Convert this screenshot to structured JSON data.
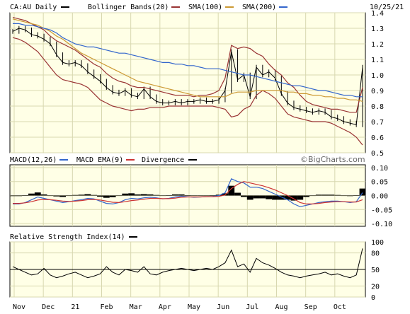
{
  "header": {
    "symbol_label": "CA:AU Daily",
    "bollinger_label": "Bollinger Bands(20)",
    "sma100_label": "SMA(100)",
    "sma200_label": "SMA(200)",
    "date_label": "10/25/21"
  },
  "macd_header": {
    "macd_label": "MACD(12,26)",
    "ema_label": "MACD EMA(9)",
    "divergence_label": "Divergence"
  },
  "rsi_header": {
    "rsi_label": "Relative Strength Index(14)"
  },
  "watermark": "©BigCharts.com",
  "colors": {
    "plot_bg": "#ffffe6",
    "grid": "#d8d8b0",
    "price": "#000000",
    "bollinger": "#993333",
    "sma100": "#cc9933",
    "sma200": "#3366cc",
    "macd": "#3366cc",
    "ema": "#cc3333",
    "divergence": "#000000",
    "rsi": "#000000"
  },
  "chart_data": [
    {
      "type": "line",
      "panel": "price",
      "x_ticks": [
        "Nov",
        "Dec",
        "21",
        "Feb",
        "Mar",
        "Apr",
        "May",
        "Jun",
        "Jul",
        "Aug",
        "Sep",
        "Oct"
      ],
      "y_ticks": [
        "1.4",
        "1.3",
        "1.2",
        "1.1",
        "1.0",
        "0.9",
        "0.8",
        "0.7",
        "0.6",
        "0.5"
      ],
      "ylim": [
        0.5,
        1.4
      ],
      "series": [
        {
          "name": "CA:AU Daily",
          "values": [
            1.28,
            1.3,
            1.29,
            1.26,
            1.25,
            1.23,
            1.2,
            1.13,
            1.08,
            1.07,
            1.08,
            1.06,
            1.02,
            0.99,
            0.96,
            0.92,
            0.89,
            0.88,
            0.9,
            0.87,
            0.86,
            0.91,
            0.86,
            0.83,
            0.82,
            0.82,
            0.83,
            0.82,
            0.83,
            0.83,
            0.84,
            0.83,
            0.83,
            0.84,
            0.9,
            1.15,
            0.97,
            1.0,
            0.86,
            1.05,
            1.0,
            1.02,
            0.98,
            0.88,
            0.82,
            0.79,
            0.78,
            0.77,
            0.76,
            0.77,
            0.76,
            0.73,
            0.72,
            0.7,
            0.69,
            0.68,
            1.05
          ]
        },
        {
          "name": "Bollinger Bands(20)",
          "values": [
            1.37,
            1.36,
            1.35,
            1.33,
            1.31,
            1.29,
            1.25,
            1.22,
            1.2,
            1.18,
            1.16,
            1.13,
            1.1,
            1.07,
            1.05,
            1.01,
            0.98,
            0.96,
            0.95,
            0.93,
            0.92,
            0.92,
            0.91,
            0.9,
            0.89,
            0.88,
            0.87,
            0.87,
            0.87,
            0.86,
            0.87,
            0.87,
            0.88,
            0.9,
            0.98,
            1.19,
            1.17,
            1.18,
            1.17,
            1.14,
            1.12,
            1.07,
            1.03,
            1.0,
            0.95,
            0.92,
            0.87,
            0.83,
            0.81,
            0.8,
            0.79,
            0.78,
            0.78,
            0.77,
            0.76,
            0.76,
            0.92
          ]
        },
        {
          "name": "Bollinger Bands(20) lower",
          "values": [
            1.24,
            1.23,
            1.21,
            1.18,
            1.15,
            1.1,
            1.05,
            1.0,
            0.97,
            0.96,
            0.95,
            0.94,
            0.92,
            0.88,
            0.84,
            0.82,
            0.8,
            0.79,
            0.78,
            0.77,
            0.78,
            0.78,
            0.79,
            0.79,
            0.79,
            0.8,
            0.8,
            0.8,
            0.8,
            0.8,
            0.8,
            0.8,
            0.8,
            0.79,
            0.78,
            0.73,
            0.74,
            0.78,
            0.8,
            0.87,
            0.9,
            0.88,
            0.85,
            0.8,
            0.75,
            0.73,
            0.72,
            0.71,
            0.7,
            0.7,
            0.7,
            0.69,
            0.67,
            0.65,
            0.63,
            0.6,
            0.55
          ]
        },
        {
          "name": "SMA(100)",
          "values": [
            1.36,
            1.35,
            1.34,
            1.33,
            1.32,
            1.3,
            1.28,
            1.25,
            1.23,
            1.2,
            1.17,
            1.14,
            1.12,
            1.1,
            1.08,
            1.06,
            1.04,
            1.02,
            1.0,
            0.98,
            0.96,
            0.95,
            0.94,
            0.93,
            0.92,
            0.91,
            0.9,
            0.89,
            0.88,
            0.87,
            0.86,
            0.86,
            0.86,
            0.86,
            0.86,
            0.88,
            0.89,
            0.89,
            0.89,
            0.9,
            0.9,
            0.9,
            0.9,
            0.9,
            0.89,
            0.89,
            0.88,
            0.88,
            0.87,
            0.87,
            0.86,
            0.86,
            0.85,
            0.85,
            0.84,
            0.84,
            0.83
          ]
        },
        {
          "name": "SMA(200)",
          "values": [
            1.33,
            1.33,
            1.32,
            1.32,
            1.31,
            1.3,
            1.29,
            1.27,
            1.24,
            1.22,
            1.2,
            1.19,
            1.18,
            1.18,
            1.17,
            1.16,
            1.15,
            1.14,
            1.14,
            1.13,
            1.12,
            1.11,
            1.1,
            1.09,
            1.08,
            1.08,
            1.07,
            1.07,
            1.06,
            1.06,
            1.05,
            1.04,
            1.04,
            1.04,
            1.03,
            1.02,
            1.01,
            1.0,
            1.0,
            0.99,
            0.98,
            0.97,
            0.96,
            0.95,
            0.94,
            0.93,
            0.93,
            0.92,
            0.91,
            0.9,
            0.9,
            0.89,
            0.88,
            0.87,
            0.87,
            0.86,
            0.86
          ]
        }
      ]
    },
    {
      "type": "line",
      "panel": "macd",
      "y_ticks": [
        "0.10",
        "0.05",
        "0.00",
        "-0.05",
        "-0.10"
      ],
      "ylim": [
        -0.11,
        0.11
      ],
      "series": [
        {
          "name": "MACD(12,26)",
          "values": [
            -0.03,
            -0.03,
            -0.025,
            -0.015,
            -0.005,
            -0.01,
            -0.015,
            -0.02,
            -0.025,
            -0.022,
            -0.018,
            -0.015,
            -0.01,
            -0.012,
            -0.02,
            -0.028,
            -0.03,
            -0.025,
            -0.015,
            -0.01,
            -0.012,
            -0.008,
            -0.006,
            -0.008,
            -0.012,
            -0.01,
            -0.005,
            -0.002,
            -0.004,
            -0.006,
            -0.005,
            -0.004,
            -0.003,
            0.0,
            0.01,
            0.06,
            0.05,
            0.045,
            0.03,
            0.03,
            0.025,
            0.015,
            0.005,
            -0.005,
            -0.015,
            -0.03,
            -0.04,
            -0.035,
            -0.03,
            -0.025,
            -0.022,
            -0.02,
            -0.02,
            -0.022,
            -0.025,
            -0.022,
            0.01
          ]
        },
        {
          "name": "MACD EMA(9)",
          "values": [
            -0.028,
            -0.028,
            -0.026,
            -0.022,
            -0.016,
            -0.014,
            -0.015,
            -0.017,
            -0.02,
            -0.021,
            -0.02,
            -0.018,
            -0.015,
            -0.014,
            -0.016,
            -0.02,
            -0.024,
            -0.025,
            -0.022,
            -0.018,
            -0.016,
            -0.013,
            -0.01,
            -0.01,
            -0.011,
            -0.011,
            -0.009,
            -0.006,
            -0.005,
            -0.005,
            -0.005,
            -0.004,
            -0.004,
            -0.003,
            0.002,
            0.025,
            0.04,
            0.05,
            0.045,
            0.04,
            0.035,
            0.028,
            0.02,
            0.01,
            0.0,
            -0.012,
            -0.025,
            -0.03,
            -0.03,
            -0.028,
            -0.025,
            -0.023,
            -0.022,
            -0.022,
            -0.023,
            -0.023,
            -0.015
          ]
        },
        {
          "name": "Divergence",
          "values": [
            -0.002,
            -0.002,
            0.001,
            0.007,
            0.011,
            0.004,
            0.0,
            -0.003,
            -0.005,
            -0.001,
            0.002,
            0.003,
            0.005,
            0.002,
            -0.004,
            -0.008,
            -0.006,
            0.0,
            0.007,
            0.008,
            0.004,
            0.005,
            0.004,
            0.002,
            -0.001,
            0.001,
            0.004,
            0.004,
            0.001,
            -0.001,
            0.0,
            0.0,
            0.001,
            0.003,
            0.008,
            0.035,
            0.01,
            -0.005,
            -0.015,
            -0.01,
            -0.01,
            -0.013,
            -0.015,
            -0.015,
            -0.015,
            -0.018,
            -0.015,
            -0.005,
            0.0,
            0.003,
            0.003,
            0.003,
            0.002,
            0.0,
            -0.002,
            0.001,
            0.025
          ]
        }
      ]
    },
    {
      "type": "line",
      "panel": "rsi",
      "y_ticks": [
        "100",
        "80",
        "50",
        "20",
        "0"
      ],
      "ylim": [
        0,
        100
      ],
      "reference_line": 50,
      "series": [
        {
          "name": "Relative Strength Index(14)",
          "values": [
            55,
            50,
            45,
            40,
            42,
            52,
            40,
            35,
            38,
            42,
            45,
            40,
            35,
            38,
            42,
            55,
            45,
            40,
            50,
            48,
            45,
            55,
            42,
            40,
            45,
            48,
            50,
            52,
            50,
            48,
            50,
            52,
            50,
            55,
            62,
            85,
            55,
            60,
            45,
            70,
            62,
            58,
            52,
            45,
            40,
            38,
            35,
            38,
            40,
            42,
            45,
            40,
            42,
            38,
            35,
            40,
            88
          ]
        }
      ]
    }
  ]
}
